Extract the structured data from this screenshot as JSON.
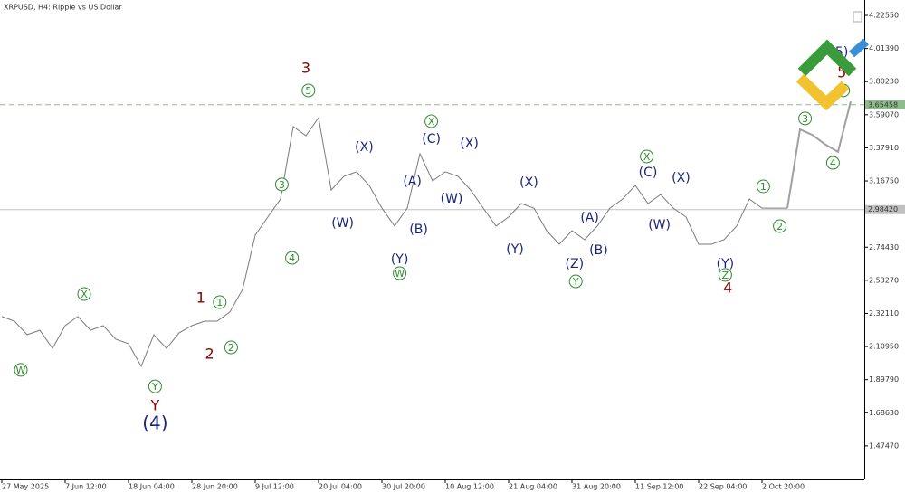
{
  "chart_data": {
    "type": "line",
    "title": "XRPUSD, H4:  Ripple vs US Dollar",
    "categories": [
      "27 May 2025",
      null,
      null,
      null,
      null,
      "7 Jun 12:00",
      null,
      null,
      null,
      null,
      "18 Jun 04:00",
      null,
      null,
      null,
      null,
      "28 Jun 20:00",
      null,
      null,
      null,
      null,
      "9 Jul 12:00",
      null,
      null,
      null,
      null,
      "20 Jul 04:00",
      null,
      null,
      null,
      null,
      "30 Jul 20:00",
      null,
      null,
      null,
      null,
      "10 Aug 12:00",
      null,
      null,
      null,
      null,
      "21 Aug 04:00",
      null,
      null,
      null,
      null,
      "31 Aug 20:00",
      null,
      null,
      null,
      null,
      "11 Sep 12:00",
      null,
      null,
      null,
      null,
      "22 Sep 04:00",
      null,
      null,
      null,
      null,
      "2 Oct 20:00",
      null,
      null,
      null,
      null,
      null,
      null,
      null
    ],
    "series": [
      {
        "color": "#7a7a7a",
        "values": [
          2.301,
          2.272,
          2.185,
          2.214,
          2.098,
          2.243,
          2.301,
          2.214,
          2.243,
          2.156,
          2.127,
          1.983,
          2.185,
          2.098,
          2.197,
          2.243,
          2.272,
          2.272,
          2.33,
          2.474,
          2.821,
          2.937,
          3.052,
          3.515,
          3.457,
          3.572,
          3.11,
          3.197,
          3.226,
          3.139,
          2.994,
          2.879,
          2.994,
          3.341,
          3.168,
          3.226,
          3.197,
          3.11,
          2.994,
          2.879,
          2.937,
          3.023,
          2.994,
          2.85,
          2.763,
          2.85,
          2.792,
          2.879,
          2.994,
          3.052,
          3.139,
          3.023,
          3.081,
          2.994,
          2.937,
          2.763,
          2.763,
          2.792,
          2.879,
          3.052,
          2.994,
          2.994,
          2.994,
          null,
          null,
          null,
          null,
          null
        ]
      },
      {
        "color": "#a0a0a0",
        "values": [
          null,
          null,
          null,
          null,
          null,
          null,
          null,
          null,
          null,
          null,
          null,
          null,
          null,
          null,
          null,
          null,
          null,
          null,
          null,
          null,
          null,
          null,
          null,
          null,
          null,
          null,
          null,
          null,
          null,
          null,
          null,
          null,
          null,
          null,
          null,
          null,
          null,
          null,
          null,
          null,
          null,
          null,
          null,
          null,
          null,
          null,
          null,
          null,
          null,
          null,
          null,
          null,
          null,
          null,
          null,
          null,
          null,
          null,
          null,
          null,
          null,
          null,
          2.994,
          3.497,
          3.46,
          3.4,
          3.353,
          3.676
        ]
      }
    ],
    "ylim": [
      1.2602,
      4.3238
    ],
    "yticks": [
      {
        "value": 4.2255,
        "label": "4.22550"
      },
      {
        "value": 4.0139,
        "label": "4.01390"
      },
      {
        "value": 3.8023,
        "label": "3.80230"
      },
      {
        "value": 3.5907,
        "label": "3.59070"
      },
      {
        "value": 3.3791,
        "label": "3.37910"
      },
      {
        "value": 3.1675,
        "label": "3.16750"
      },
      {
        "value": 2.7443,
        "label": "2.74430"
      },
      {
        "value": 2.5327,
        "label": "2.53270"
      },
      {
        "value": 2.3211,
        "label": "2.32110"
      },
      {
        "value": 2.1095,
        "label": "2.10950"
      },
      {
        "value": 1.8979,
        "label": "1.89790"
      },
      {
        "value": 1.6863,
        "label": "1.68630"
      },
      {
        "value": 1.4747,
        "label": "1.47470"
      }
    ],
    "hlines": [
      {
        "value": 3.65458,
        "color": "#8fbc8f",
        "dashed": true
      },
      {
        "value": 2.9842,
        "label": "2.98420",
        "color": "#c0c0c0",
        "dashed": false
      }
    ],
    "annotations": [
      {
        "text": "W",
        "x": 1.5,
        "y": 1.96,
        "color": "#2e8b2e",
        "circled": true
      },
      {
        "text": "X",
        "x": 6.5,
        "y": 2.445,
        "color": "#2e8b2e",
        "circled": true
      },
      {
        "text": "Y",
        "x": 12.1,
        "y": 1.855,
        "color": "#2e8b2e",
        "circled": true
      },
      {
        "text": "Y",
        "x": 12.1,
        "y": 1.734,
        "color": "#8b0000",
        "circled": false
      },
      {
        "text": "(4)",
        "x": 12.1,
        "y": 1.618,
        "color": "#1a237e",
        "circled": false
      },
      {
        "text": "1",
        "x": 15.7,
        "y": 2.422,
        "color": "#8b0000",
        "circled": false
      },
      {
        "text": "1",
        "x": 17.2,
        "y": 2.393,
        "color": "#2e8b2e",
        "circled": true
      },
      {
        "text": "2",
        "x": 16.4,
        "y": 2.064,
        "color": "#8b0000",
        "circled": false
      },
      {
        "text": "2",
        "x": 18.1,
        "y": 2.104,
        "color": "#2e8b2e",
        "circled": true
      },
      {
        "text": "3",
        "x": 22.1,
        "y": 3.145,
        "color": "#2e8b2e",
        "circled": true
      },
      {
        "text": "4",
        "x": 22.9,
        "y": 2.676,
        "color": "#2e8b2e",
        "circled": true
      },
      {
        "text": "3",
        "x": 24.0,
        "y": 3.89,
        "color": "#8b0000",
        "circled": false
      },
      {
        "text": "5",
        "x": 24.2,
        "y": 3.746,
        "color": "#2e8b2e",
        "circled": true
      },
      {
        "text": "(X)",
        "x": 28.6,
        "y": 3.387,
        "color": "#1a237e",
        "circled": false
      },
      {
        "text": "(W)",
        "x": 26.9,
        "y": 2.902,
        "color": "#1a237e",
        "circled": false
      },
      {
        "text": "(A)",
        "x": 32.4,
        "y": 3.168,
        "color": "#1a237e",
        "circled": false
      },
      {
        "text": "(B)",
        "x": 32.9,
        "y": 2.861,
        "color": "#1a237e",
        "circled": false
      },
      {
        "text": "(Y)",
        "x": 31.4,
        "y": 2.671,
        "color": "#1a237e",
        "circled": false
      },
      {
        "text": "W",
        "x": 31.4,
        "y": 2.578,
        "color": "#2e8b2e",
        "circled": true
      },
      {
        "text": "X",
        "x": 33.9,
        "y": 3.549,
        "color": "#2e8b2e",
        "circled": true
      },
      {
        "text": "(C)",
        "x": 33.9,
        "y": 3.439,
        "color": "#1a237e",
        "circled": false
      },
      {
        "text": "(X)",
        "x": 36.9,
        "y": 3.41,
        "color": "#1a237e",
        "circled": false
      },
      {
        "text": "(W)",
        "x": 35.5,
        "y": 3.058,
        "color": "#1a237e",
        "circled": false
      },
      {
        "text": "(X)",
        "x": 41.6,
        "y": 3.162,
        "color": "#1a237e",
        "circled": false
      },
      {
        "text": "(Y)",
        "x": 40.5,
        "y": 2.734,
        "color": "#1a237e",
        "circled": false
      },
      {
        "text": "(A)",
        "x": 46.4,
        "y": 2.937,
        "color": "#1a237e",
        "circled": false
      },
      {
        "text": "(B)",
        "x": 47.1,
        "y": 2.728,
        "color": "#1a237e",
        "circled": false
      },
      {
        "text": "(Z)",
        "x": 45.2,
        "y": 2.642,
        "color": "#1a237e",
        "circled": false
      },
      {
        "text": "Y",
        "x": 45.3,
        "y": 2.526,
        "color": "#2e8b2e",
        "circled": true
      },
      {
        "text": "X",
        "x": 50.9,
        "y": 3.324,
        "color": "#2e8b2e",
        "circled": true
      },
      {
        "text": "(C)",
        "x": 51.0,
        "y": 3.226,
        "color": "#1a237e",
        "circled": false
      },
      {
        "text": "(X)",
        "x": 53.6,
        "y": 3.191,
        "color": "#1a237e",
        "circled": false
      },
      {
        "text": "(W)",
        "x": 51.9,
        "y": 2.89,
        "color": "#1a237e",
        "circled": false
      },
      {
        "text": "(Y)",
        "x": 57.1,
        "y": 2.642,
        "color": "#1a237e",
        "circled": false
      },
      {
        "text": "Z",
        "x": 57.1,
        "y": 2.567,
        "color": "#2e8b2e",
        "circled": true
      },
      {
        "text": "4",
        "x": 57.3,
        "y": 2.486,
        "color": "#8b0000",
        "circled": false
      },
      {
        "text": "1",
        "x": 60.1,
        "y": 3.133,
        "color": "#2e8b2e",
        "circled": true
      },
      {
        "text": "2",
        "x": 61.4,
        "y": 2.879,
        "color": "#2e8b2e",
        "circled": true
      },
      {
        "text": "3",
        "x": 63.4,
        "y": 3.567,
        "color": "#2e8b2e",
        "circled": true
      },
      {
        "text": "4",
        "x": 65.6,
        "y": 3.283,
        "color": "#2e8b2e",
        "circled": true
      },
      {
        "text": "(5)",
        "x": 66.1,
        "y": 3.994,
        "color": "#1a237e",
        "circled": false
      },
      {
        "text": "5",
        "x": 66.3,
        "y": 3.861,
        "color": "#8b0000",
        "circled": false
      },
      {
        "text": "5",
        "x": 66.4,
        "y": 3.746,
        "color": "#2e8b2e",
        "circled": true
      }
    ]
  }
}
